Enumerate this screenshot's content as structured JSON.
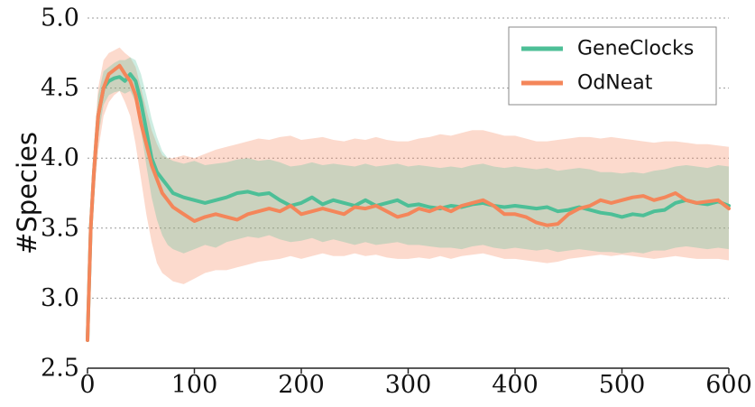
{
  "chart_data": {
    "type": "line",
    "title": "",
    "xlabel": "",
    "ylabel": "#Species",
    "xlim": [
      0,
      600
    ],
    "ylim": [
      2.5,
      5.0
    ],
    "x_ticks": [
      "0",
      "100",
      "200",
      "300",
      "400",
      "500",
      "600"
    ],
    "y_ticks": [
      "2.5",
      "3.0",
      "3.5",
      "4.0",
      "4.5",
      "5.0"
    ],
    "grid": "horizontal-dotted",
    "legend_position": "top-right",
    "series": [
      {
        "name": "GeneClocks",
        "color": "#4dbf97",
        "x": [
          0,
          3,
          6,
          10,
          15,
          20,
          25,
          30,
          35,
          40,
          45,
          50,
          55,
          60,
          65,
          70,
          75,
          80,
          90,
          100,
          110,
          120,
          130,
          140,
          150,
          160,
          170,
          180,
          190,
          200,
          210,
          220,
          230,
          240,
          250,
          260,
          270,
          280,
          290,
          300,
          310,
          320,
          330,
          340,
          350,
          360,
          370,
          380,
          390,
          400,
          410,
          420,
          430,
          440,
          450,
          460,
          470,
          480,
          490,
          500,
          510,
          520,
          530,
          540,
          550,
          560,
          570,
          580,
          590,
          600
        ],
        "y": [
          2.7,
          3.5,
          3.9,
          4.3,
          4.5,
          4.55,
          4.57,
          4.58,
          4.55,
          4.6,
          4.55,
          4.4,
          4.2,
          4.0,
          3.9,
          3.85,
          3.8,
          3.75,
          3.72,
          3.7,
          3.68,
          3.7,
          3.72,
          3.75,
          3.76,
          3.74,
          3.75,
          3.7,
          3.66,
          3.68,
          3.72,
          3.67,
          3.7,
          3.68,
          3.66,
          3.7,
          3.66,
          3.68,
          3.7,
          3.66,
          3.67,
          3.65,
          3.64,
          3.66,
          3.65,
          3.67,
          3.68,
          3.66,
          3.65,
          3.66,
          3.65,
          3.64,
          3.65,
          3.62,
          3.63,
          3.65,
          3.63,
          3.61,
          3.6,
          3.58,
          3.6,
          3.59,
          3.62,
          3.63,
          3.68,
          3.7,
          3.68,
          3.67,
          3.69,
          3.66
        ],
        "lower": [
          2.7,
          3.4,
          3.8,
          4.15,
          4.38,
          4.45,
          4.47,
          4.48,
          4.46,
          4.48,
          4.4,
          4.2,
          3.95,
          3.72,
          3.56,
          3.45,
          3.38,
          3.35,
          3.32,
          3.35,
          3.38,
          3.36,
          3.4,
          3.42,
          3.44,
          3.43,
          3.45,
          3.42,
          3.4,
          3.41,
          3.43,
          3.4,
          3.42,
          3.4,
          3.38,
          3.4,
          3.38,
          3.39,
          3.4,
          3.38,
          3.38,
          3.37,
          3.36,
          3.36,
          3.35,
          3.37,
          3.38,
          3.36,
          3.35,
          3.36,
          3.35,
          3.34,
          3.35,
          3.33,
          3.34,
          3.35,
          3.34,
          3.33,
          3.33,
          3.32,
          3.33,
          3.32,
          3.34,
          3.34,
          3.36,
          3.37,
          3.36,
          3.35,
          3.36,
          3.35
        ],
        "upper": [
          2.7,
          3.6,
          4.0,
          4.45,
          4.62,
          4.65,
          4.68,
          4.7,
          4.7,
          4.72,
          4.7,
          4.6,
          4.45,
          4.28,
          4.15,
          4.05,
          4.0,
          3.98,
          3.96,
          3.98,
          3.95,
          3.96,
          3.97,
          3.99,
          4.0,
          3.98,
          3.99,
          3.97,
          3.94,
          3.95,
          3.97,
          3.95,
          3.96,
          3.95,
          3.94,
          3.96,
          3.94,
          3.95,
          3.96,
          3.94,
          3.95,
          3.94,
          3.93,
          3.94,
          3.93,
          3.95,
          3.96,
          3.94,
          3.93,
          3.94,
          3.93,
          3.92,
          3.93,
          3.91,
          3.92,
          3.93,
          3.92,
          3.9,
          3.9,
          3.89,
          3.9,
          3.89,
          3.91,
          3.92,
          3.94,
          3.95,
          3.94,
          3.93,
          3.95,
          3.94
        ]
      },
      {
        "name": "OdNeat",
        "color": "#f4865a",
        "x": [
          0,
          3,
          6,
          10,
          15,
          20,
          25,
          30,
          35,
          40,
          45,
          50,
          55,
          60,
          65,
          70,
          75,
          80,
          90,
          100,
          110,
          120,
          130,
          140,
          150,
          160,
          170,
          180,
          190,
          200,
          210,
          220,
          230,
          240,
          250,
          260,
          270,
          280,
          290,
          300,
          310,
          320,
          330,
          340,
          350,
          360,
          370,
          380,
          390,
          400,
          410,
          420,
          430,
          440,
          450,
          460,
          470,
          480,
          490,
          500,
          510,
          520,
          530,
          540,
          550,
          560,
          570,
          580,
          590,
          600
        ],
        "y": [
          2.7,
          3.5,
          3.9,
          4.3,
          4.5,
          4.6,
          4.63,
          4.66,
          4.6,
          4.55,
          4.45,
          4.25,
          4.1,
          3.95,
          3.85,
          3.75,
          3.7,
          3.65,
          3.6,
          3.55,
          3.58,
          3.6,
          3.58,
          3.56,
          3.6,
          3.62,
          3.64,
          3.62,
          3.66,
          3.6,
          3.62,
          3.64,
          3.62,
          3.6,
          3.65,
          3.64,
          3.66,
          3.62,
          3.58,
          3.6,
          3.64,
          3.62,
          3.65,
          3.62,
          3.66,
          3.68,
          3.7,
          3.66,
          3.6,
          3.6,
          3.58,
          3.54,
          3.52,
          3.53,
          3.6,
          3.64,
          3.66,
          3.7,
          3.68,
          3.7,
          3.72,
          3.73,
          3.7,
          3.72,
          3.75,
          3.7,
          3.68,
          3.69,
          3.7,
          3.64
        ],
        "lower": [
          2.7,
          3.3,
          3.7,
          4.05,
          4.3,
          4.4,
          4.45,
          4.48,
          4.4,
          4.3,
          4.1,
          3.85,
          3.6,
          3.4,
          3.25,
          3.18,
          3.15,
          3.12,
          3.1,
          3.14,
          3.18,
          3.2,
          3.2,
          3.22,
          3.24,
          3.26,
          3.27,
          3.28,
          3.3,
          3.28,
          3.3,
          3.32,
          3.3,
          3.3,
          3.32,
          3.3,
          3.31,
          3.29,
          3.28,
          3.28,
          3.29,
          3.28,
          3.3,
          3.28,
          3.3,
          3.31,
          3.32,
          3.3,
          3.28,
          3.28,
          3.27,
          3.26,
          3.25,
          3.26,
          3.28,
          3.29,
          3.3,
          3.31,
          3.3,
          3.31,
          3.3,
          3.29,
          3.28,
          3.29,
          3.3,
          3.29,
          3.28,
          3.28,
          3.28,
          3.27
        ],
        "upper": [
          2.7,
          3.7,
          4.1,
          4.5,
          4.7,
          4.75,
          4.77,
          4.79,
          4.75,
          4.72,
          4.65,
          4.5,
          4.35,
          4.2,
          4.1,
          4.02,
          4.0,
          4.0,
          4.02,
          4.0,
          4.03,
          4.06,
          4.08,
          4.1,
          4.12,
          4.14,
          4.13,
          4.15,
          4.16,
          4.13,
          4.14,
          4.15,
          4.13,
          4.12,
          4.14,
          4.13,
          4.15,
          4.13,
          4.12,
          4.12,
          4.14,
          4.15,
          4.17,
          4.16,
          4.18,
          4.2,
          4.2,
          4.18,
          4.16,
          4.16,
          4.14,
          4.12,
          4.12,
          4.13,
          4.14,
          4.15,
          4.15,
          4.14,
          4.15,
          4.14,
          4.13,
          4.12,
          4.11,
          4.12,
          4.12,
          4.11,
          4.1,
          4.1,
          4.09,
          4.08
        ]
      }
    ]
  }
}
